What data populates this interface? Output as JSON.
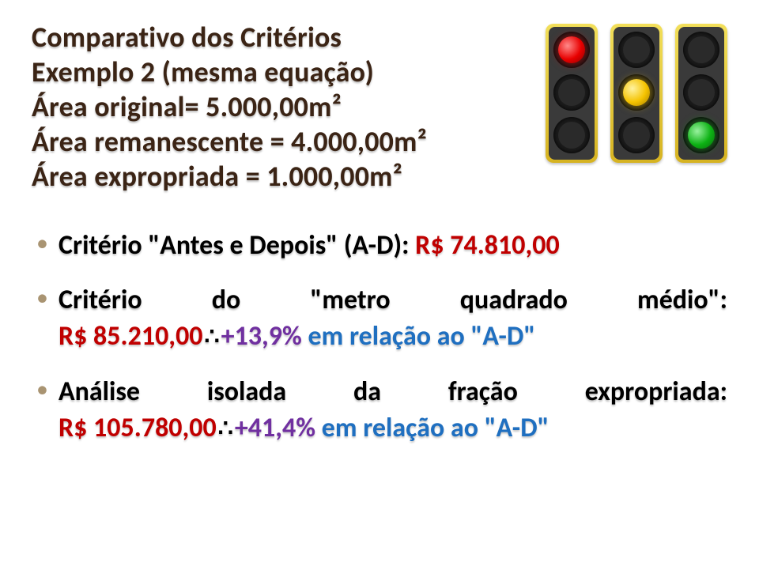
{
  "title": {
    "line1": "Comparativo dos Critérios",
    "line2": "Exemplo 2 (mesma equação)",
    "line3": "Área original= 5.000,00m²",
    "line4": "Área remanescente = 4.000,00m²",
    "line5": "Área expropriada = 1.000,00m²"
  },
  "bullets": {
    "b1_text": "Critério \"Antes e Depois\" (A-D): ",
    "b1_value": "R$ 74.810,00",
    "b2_text_a": "Critério",
    "b2_text_b": "do",
    "b2_text_c": "\"metro",
    "b2_text_d": "quadrado",
    "b2_text_e": "médio\":",
    "b2_value": "R$ 85.210,00",
    "b2_diff": "+13,9% ",
    "b2_rel": "em relação ao \"A-D\"",
    "b3_text_a": "Análise",
    "b3_text_b": "isolada",
    "b3_text_c": "da",
    "b3_text_d": "fração",
    "b3_text_e": "expropriada:",
    "b3_value": "R$ 105.780,00",
    "b3_diff": "+41,4% ",
    "b3_rel": "em relação ao \"A-D\""
  },
  "colors": {
    "title": "#3b2415",
    "text": "#000000",
    "red": "#c00000",
    "purple": "#7030a0",
    "blue": "#1f6fc0",
    "bullet_marker": "#a99472",
    "traffic_frame_top": "#f2df5a",
    "traffic_frame_bottom": "#d6b321"
  },
  "image": {
    "type": "traffic-lights",
    "count": 3,
    "lit": [
      "red",
      "yellow",
      "green"
    ]
  }
}
